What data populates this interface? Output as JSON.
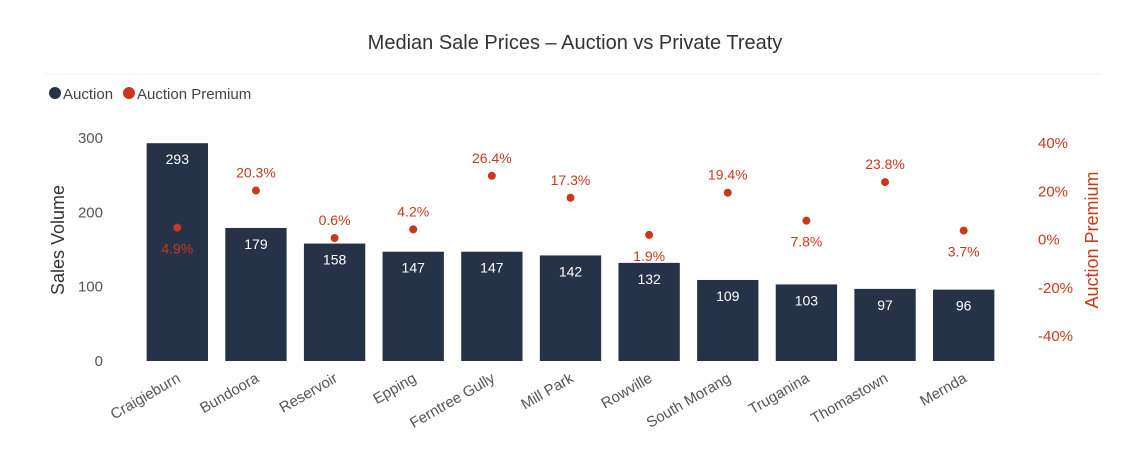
{
  "chart_data": {
    "type": "bar",
    "title": "Median Sale Prices – Auction vs Private Treaty",
    "categories": [
      "Craigieburn",
      "Bundoora",
      "Reservoir",
      "Epping",
      "Ferntree Gully",
      "Mill Park",
      "Rowville",
      "South Morang",
      "Truganina",
      "Thomastown",
      "Mernda"
    ],
    "series": [
      {
        "name": "Auction",
        "type": "bar",
        "axis": "left",
        "color": "#263248",
        "values": [
          293,
          179,
          158,
          147,
          147,
          142,
          132,
          109,
          103,
          97,
          96
        ],
        "labels": [
          "293",
          "179",
          "158",
          "147",
          "147",
          "142",
          "132",
          "109",
          "103",
          "97",
          "96"
        ]
      },
      {
        "name": "Auction Premium",
        "type": "scatter",
        "axis": "right",
        "color": "#c8391a",
        "values": [
          4.9,
          20.3,
          0.6,
          4.2,
          26.4,
          17.3,
          1.9,
          19.4,
          7.8,
          23.8,
          3.7
        ],
        "labels": [
          "4.9%",
          "20.3%",
          "0.6%",
          "4.2%",
          "26.4%",
          "17.3%",
          "1.9%",
          "19.4%",
          "7.8%",
          "23.8%",
          "3.7%"
        ],
        "label_positions": [
          "below",
          "above",
          "above",
          "above",
          "above",
          "above",
          "below",
          "above",
          "below",
          "above",
          "below"
        ]
      }
    ],
    "ylabel": "Sales Volume",
    "y2label": "Auction Premium",
    "ylim": [
      0,
      300
    ],
    "y2lim": [
      -45,
      45
    ],
    "yticks": [
      "0",
      "100",
      "200",
      "300"
    ],
    "y2ticks": [
      "40%",
      "20%",
      "0%",
      "-20%",
      "-40%"
    ],
    "y2tick_values": [
      40,
      20,
      0,
      -20,
      -40
    ],
    "legend_position": "top-left",
    "grid": false
  }
}
